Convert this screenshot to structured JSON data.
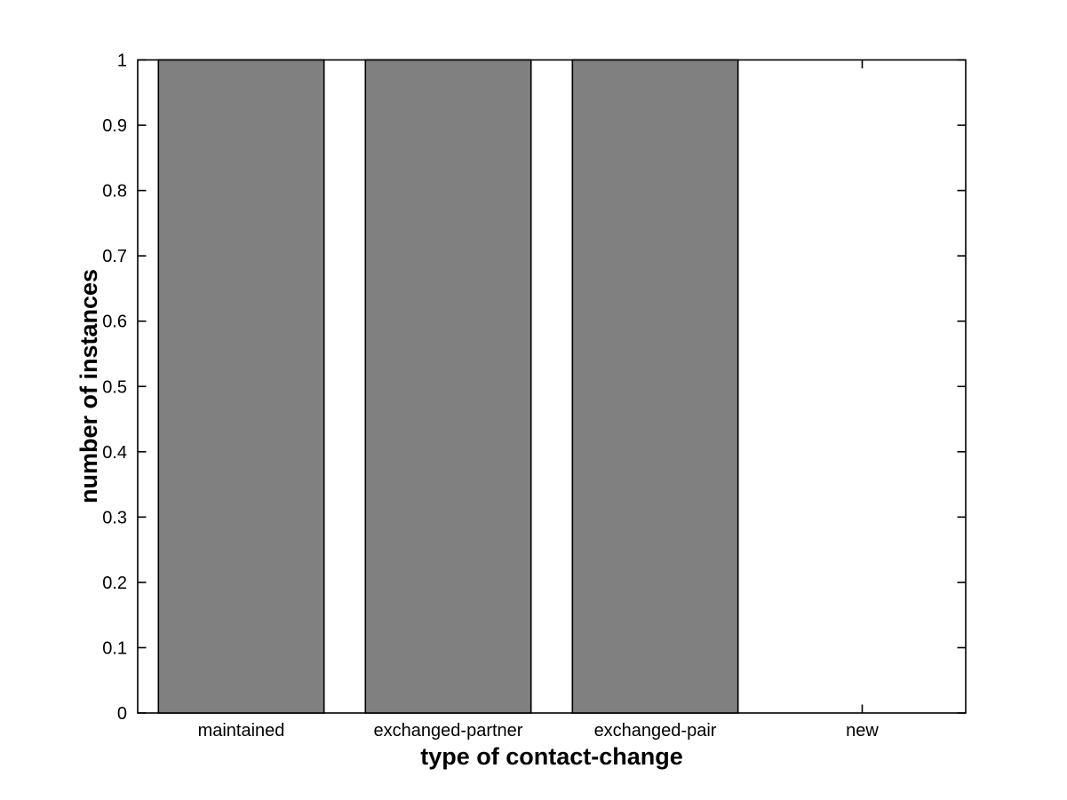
{
  "figure": {
    "background_color": "#ffffff"
  },
  "chart_data": {
    "type": "bar",
    "title": "",
    "categories": [
      "maintained",
      "exchanged-partner",
      "exchanged-pair",
      "new"
    ],
    "values": [
      1,
      1,
      1,
      0
    ],
    "xlabel": "type of contact-change",
    "ylabel": "number of instances",
    "ylim": [
      0,
      1
    ],
    "yticks": [
      0,
      0.1,
      0.2,
      0.3,
      0.4,
      0.5,
      0.6,
      0.7,
      0.8,
      0.9,
      1
    ],
    "ytick_labels": [
      "0",
      "0.1",
      "0.2",
      "0.3",
      "0.4",
      "0.5",
      "0.6",
      "0.7",
      "0.8",
      "0.9",
      "1"
    ],
    "bar_width_fraction": 0.8,
    "bar_fill_color": "#808080",
    "bar_edge_color": "#000000",
    "axis_color": "#000000",
    "grid": false,
    "legend": null
  }
}
